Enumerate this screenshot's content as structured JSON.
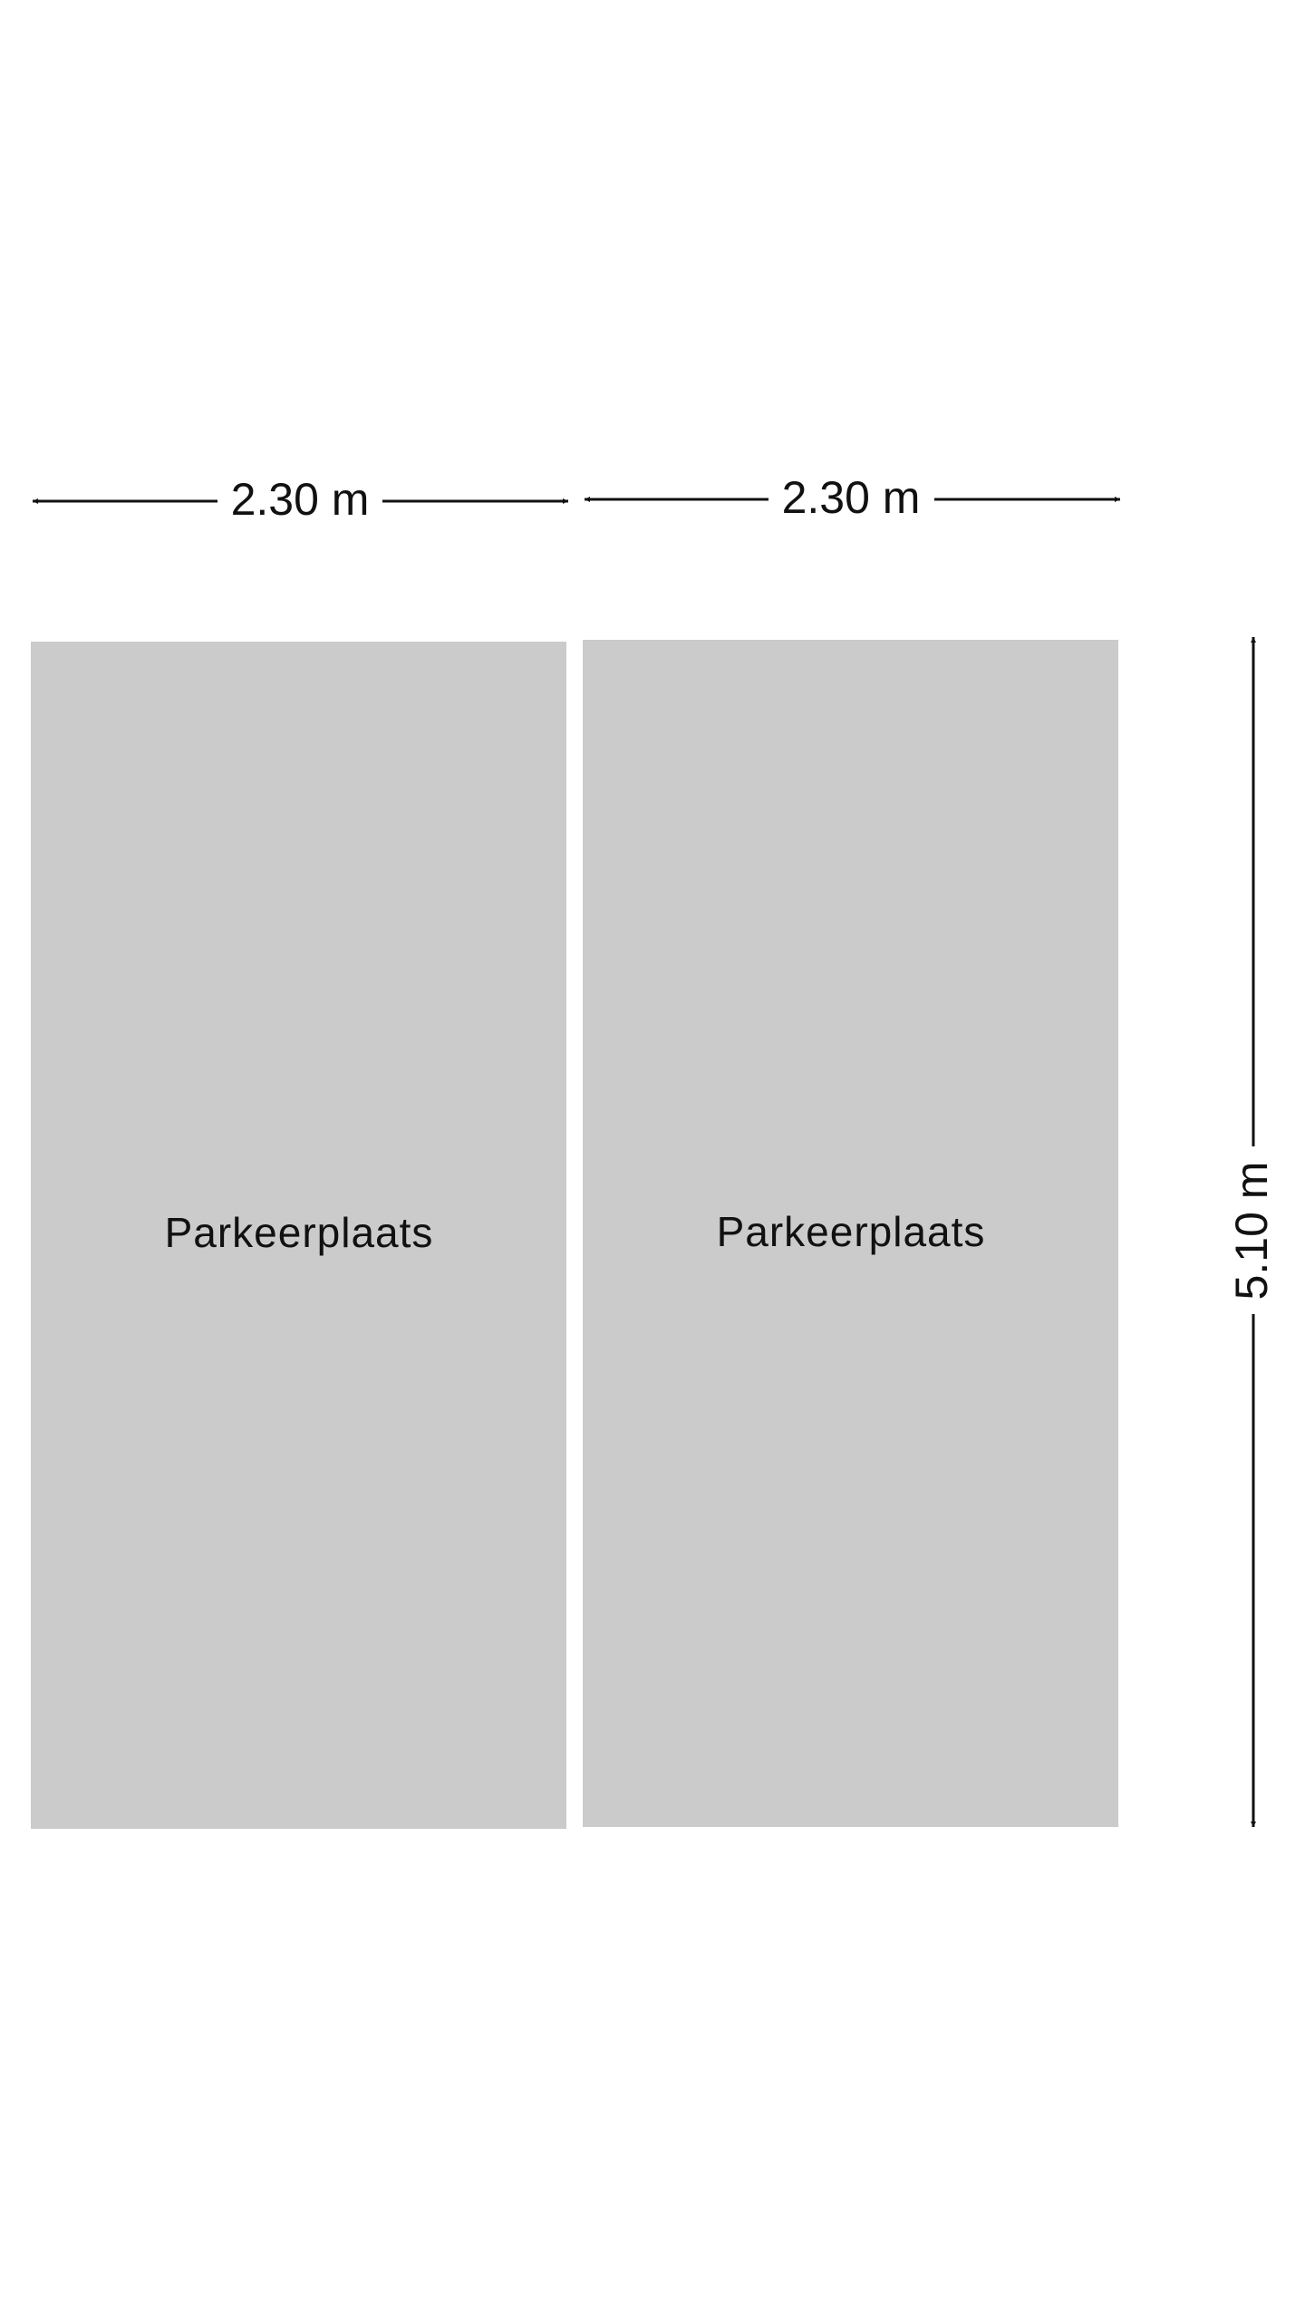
{
  "spaces": [
    {
      "label": "Parkeerplaats"
    },
    {
      "label": "Parkeerplaats"
    }
  ],
  "dimensions": {
    "widths": [
      "2.30 m",
      "2.30 m"
    ],
    "depth": "5.10 m"
  }
}
